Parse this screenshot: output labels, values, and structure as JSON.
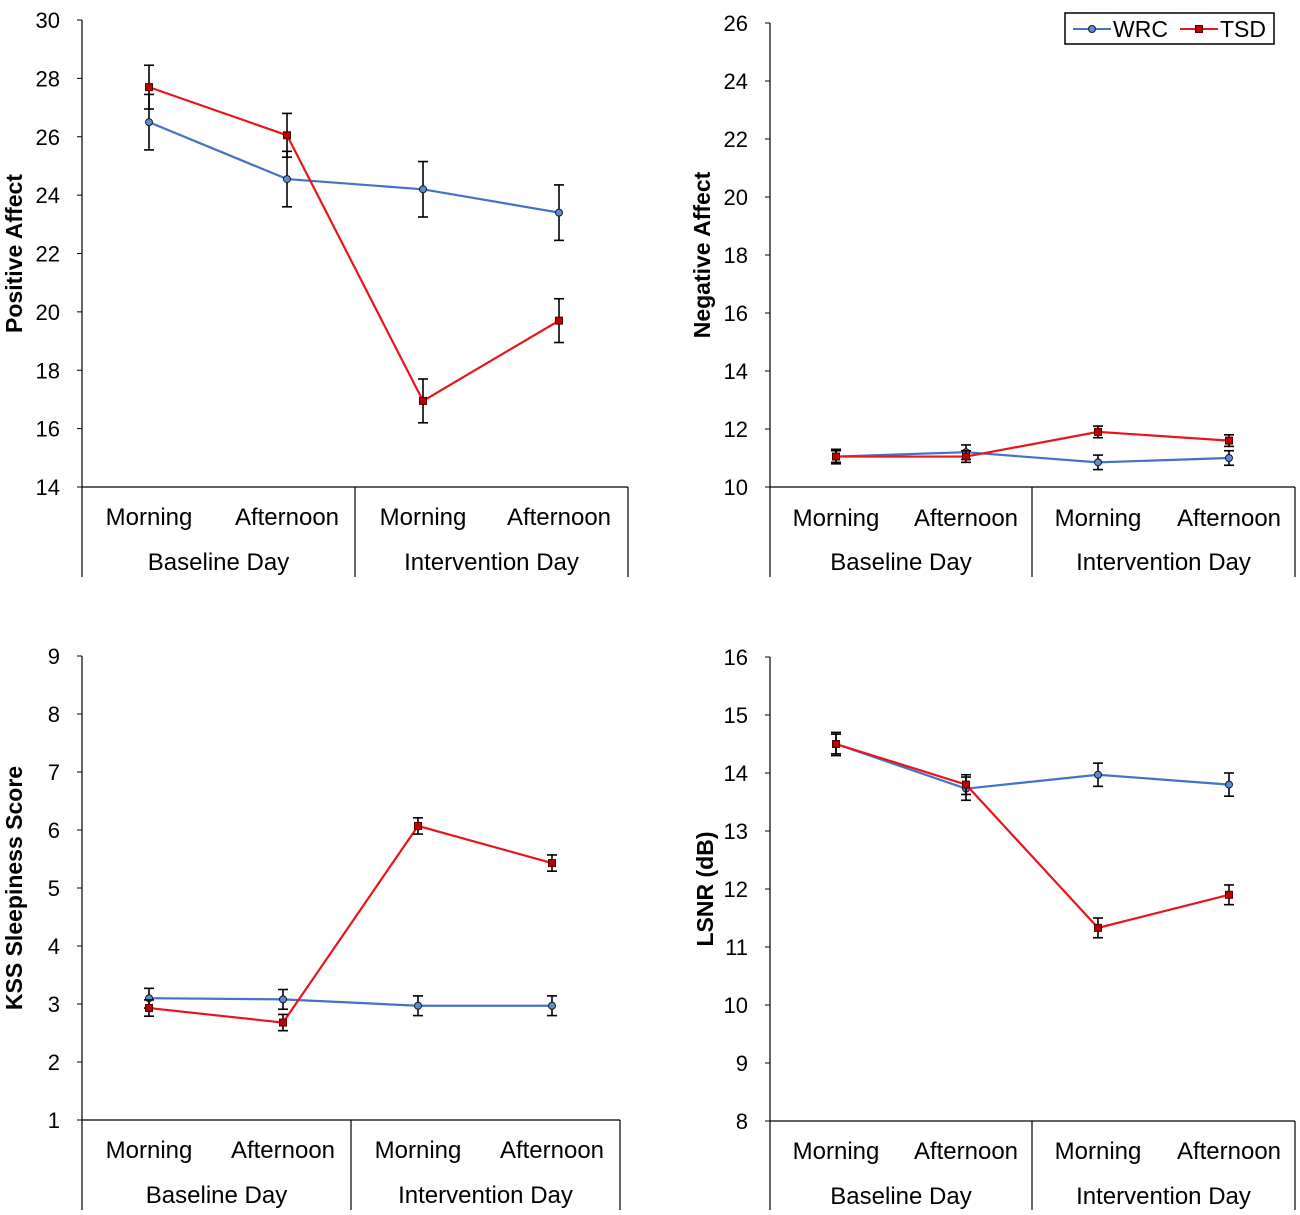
{
  "legend": {
    "items": [
      {
        "name": "WRC",
        "color": "#4472C4",
        "marker": "circle",
        "fill": "#5B8BD9"
      },
      {
        "name": "TSD",
        "color": "#E8151B",
        "marker": "square",
        "fill": "#C00000"
      }
    ]
  },
  "chart_data": [
    {
      "type": "line",
      "title": "",
      "ylabel": "Positive Affect",
      "xlabel": "",
      "ylim": [
        14,
        30
      ],
      "yticks": [
        14,
        16,
        18,
        20,
        22,
        24,
        26,
        28,
        30
      ],
      "categories": [
        "Morning",
        "Afternoon",
        "Morning",
        "Afternoon"
      ],
      "groups": [
        "Baseline Day",
        "Intervention Day"
      ],
      "series": [
        {
          "name": "WRC",
          "values": [
            26.5,
            24.55,
            24.2,
            23.4
          ],
          "errors": [
            0.95,
            0.95,
            0.95,
            0.95
          ]
        },
        {
          "name": "TSD",
          "values": [
            27.7,
            26.05,
            16.95,
            19.7
          ],
          "errors": [
            0.75,
            0.75,
            0.75,
            0.75
          ]
        }
      ]
    },
    {
      "type": "line",
      "title": "",
      "ylabel": "Negative Affect",
      "xlabel": "",
      "ylim": [
        10,
        26
      ],
      "yticks": [
        10,
        12,
        14,
        16,
        18,
        20,
        22,
        24,
        26
      ],
      "categories": [
        "Morning",
        "Afternoon",
        "Morning",
        "Afternoon"
      ],
      "groups": [
        "Baseline Day",
        "Intervention Day"
      ],
      "series": [
        {
          "name": "WRC",
          "values": [
            11.05,
            11.2,
            10.85,
            11.0
          ],
          "errors": [
            0.25,
            0.25,
            0.25,
            0.25
          ]
        },
        {
          "name": "TSD",
          "values": [
            11.05,
            11.05,
            11.9,
            11.6
          ],
          "errors": [
            0.2,
            0.2,
            0.2,
            0.2
          ]
        }
      ]
    },
    {
      "type": "line",
      "title": "",
      "ylabel": "KSS Sleepiness Score",
      "xlabel": "",
      "ylim": [
        1,
        9
      ],
      "yticks": [
        1,
        2,
        3,
        4,
        5,
        6,
        7,
        8,
        9
      ],
      "categories": [
        "Morning",
        "Afternoon",
        "Morning",
        "Afternoon"
      ],
      "groups": [
        "Baseline Day",
        "Intervention Day"
      ],
      "series": [
        {
          "name": "WRC",
          "values": [
            3.1,
            3.08,
            2.97,
            2.97
          ],
          "errors": [
            0.17,
            0.17,
            0.17,
            0.17
          ]
        },
        {
          "name": "TSD",
          "values": [
            2.93,
            2.68,
            6.07,
            5.43
          ],
          "errors": [
            0.14,
            0.14,
            0.14,
            0.14
          ]
        }
      ]
    },
    {
      "type": "line",
      "title": "",
      "ylabel": "LSNR (dB)",
      "xlabel": "",
      "ylim": [
        8,
        16
      ],
      "yticks": [
        8,
        9,
        10,
        11,
        12,
        13,
        14,
        15,
        16
      ],
      "categories": [
        "Morning",
        "Afternoon",
        "Morning",
        "Afternoon"
      ],
      "groups": [
        "Baseline Day",
        "Intervention Day"
      ],
      "series": [
        {
          "name": "WRC",
          "values": [
            14.5,
            13.73,
            13.97,
            13.8
          ],
          "errors": [
            0.2,
            0.2,
            0.2,
            0.2
          ]
        },
        {
          "name": "TSD",
          "values": [
            14.5,
            13.8,
            11.33,
            11.9
          ],
          "errors": [
            0.17,
            0.17,
            0.17,
            0.17
          ]
        }
      ]
    }
  ]
}
